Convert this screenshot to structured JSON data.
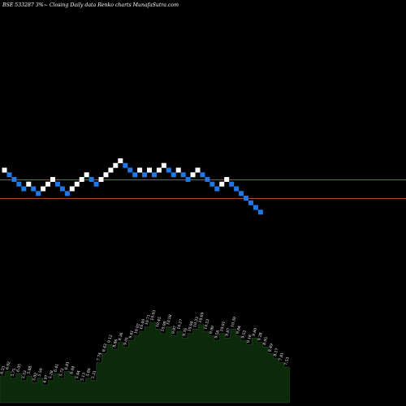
{
  "title": "BSE 533287 3%~  Closing Daily data  Renko  charts MunafaSutra.com",
  "chart_data": {
    "type": "renko",
    "box_unit": "3%",
    "bricks": [
      {
        "level": 12,
        "dir": "up"
      },
      {
        "level": 11,
        "dir": "down"
      },
      {
        "level": 10,
        "dir": "down"
      },
      {
        "level": 9,
        "dir": "down"
      },
      {
        "level": 8,
        "dir": "down"
      },
      {
        "level": 9,
        "dir": "up"
      },
      {
        "level": 8,
        "dir": "down"
      },
      {
        "level": 7,
        "dir": "down"
      },
      {
        "level": 8,
        "dir": "up"
      },
      {
        "level": 9,
        "dir": "up"
      },
      {
        "level": 10,
        "dir": "up"
      },
      {
        "level": 9,
        "dir": "down"
      },
      {
        "level": 8,
        "dir": "down"
      },
      {
        "level": 7,
        "dir": "down"
      },
      {
        "level": 8,
        "dir": "up"
      },
      {
        "level": 9,
        "dir": "up"
      },
      {
        "level": 10,
        "dir": "up"
      },
      {
        "level": 11,
        "dir": "up"
      },
      {
        "level": 10,
        "dir": "down"
      },
      {
        "level": 9,
        "dir": "down"
      },
      {
        "level": 10,
        "dir": "up"
      },
      {
        "level": 11,
        "dir": "up"
      },
      {
        "level": 12,
        "dir": "up"
      },
      {
        "level": 13,
        "dir": "up"
      },
      {
        "level": 14,
        "dir": "up"
      },
      {
        "level": 13,
        "dir": "down"
      },
      {
        "level": 12,
        "dir": "down"
      },
      {
        "level": 11,
        "dir": "down"
      },
      {
        "level": 12,
        "dir": "up"
      },
      {
        "level": 11,
        "dir": "down"
      },
      {
        "level": 12,
        "dir": "up"
      },
      {
        "level": 11,
        "dir": "down"
      },
      {
        "level": 12,
        "dir": "up"
      },
      {
        "level": 13,
        "dir": "up"
      },
      {
        "level": 12,
        "dir": "down"
      },
      {
        "level": 11,
        "dir": "down"
      },
      {
        "level": 12,
        "dir": "up"
      },
      {
        "level": 11,
        "dir": "down"
      },
      {
        "level": 10,
        "dir": "down"
      },
      {
        "level": 11,
        "dir": "up"
      },
      {
        "level": 12,
        "dir": "up"
      },
      {
        "level": 11,
        "dir": "down"
      },
      {
        "level": 10,
        "dir": "down"
      },
      {
        "level": 9,
        "dir": "down"
      },
      {
        "level": 8,
        "dir": "down"
      },
      {
        "level": 9,
        "dir": "up"
      },
      {
        "level": 10,
        "dir": "up"
      },
      {
        "level": 9,
        "dir": "down"
      },
      {
        "level": 8,
        "dir": "down"
      },
      {
        "level": 7,
        "dir": "down"
      },
      {
        "level": 6,
        "dir": "down"
      },
      {
        "level": 5,
        "dir": "down"
      },
      {
        "level": 4,
        "dir": "down"
      },
      {
        "level": 3,
        "dir": "down"
      }
    ],
    "reference_lines": [
      {
        "level": 10,
        "color": "#a0522d"
      },
      {
        "level": 6,
        "color": "#a0522d"
      }
    ],
    "volume_series": [
      12,
      14,
      11,
      13,
      10,
      12,
      9,
      11,
      8,
      10,
      13,
      11,
      14,
      12,
      10,
      9,
      11,
      10,
      18,
      22,
      26,
      24,
      27,
      25,
      28,
      30,
      32,
      34,
      36,
      33,
      31,
      34,
      30,
      32,
      29,
      31,
      33,
      35,
      32,
      30,
      28,
      31,
      29,
      33,
      30,
      28,
      26,
      29,
      27,
      25,
      22,
      20,
      18,
      16
    ],
    "volume_labels": [
      "6.33",
      "6.92",
      "5.75",
      "6.05",
      "5.53",
      "5.88",
      "5.02",
      "5.50",
      "4.97",
      "5.28",
      "6.41",
      "5.72",
      "6.81",
      "6.04",
      "5.44",
      "5.13",
      "5.60",
      "5.31",
      "7.74",
      "8.43",
      "9.12",
      "8.86",
      "9.36",
      "9.01",
      "9.61",
      "10.02",
      "10.40",
      "10.71",
      "10.93",
      "10.45",
      "10.08",
      "10.58",
      "9.97",
      "10.27",
      "9.76",
      "10.04",
      "10.33",
      "10.69",
      "10.22",
      "9.90",
      "9.58",
      "10.01",
      "9.67",
      "10.30",
      "9.84",
      "9.52",
      "9.18",
      "9.60",
      "9.28",
      "8.95",
      "8.49",
      "8.17",
      "7.81",
      "7.53"
    ],
    "colors": {
      "up": "#ffffff",
      "down": "#1e78e6",
      "volume_fill": "#0a2a0a",
      "volume_stroke": "#2b4a2b"
    }
  }
}
